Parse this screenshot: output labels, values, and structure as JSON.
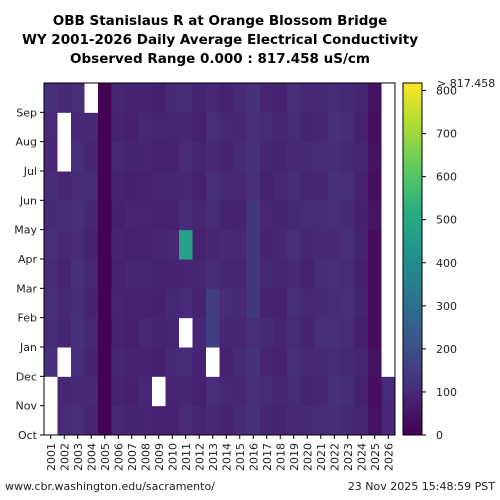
{
  "chart_data": {
    "type": "heatmap",
    "title_lines": [
      "OBB Stanislaus R at Orange Blossom Bridge",
      "WY 2001-2026 Daily Average Electrical Conductivity",
      "Observed Range 0.000 : 817.458 uS/cm"
    ],
    "x_categories": [
      "2001",
      "2002",
      "2003",
      "2004",
      "2005",
      "2006",
      "2007",
      "2008",
      "2009",
      "2010",
      "2011",
      "2012",
      "2013",
      "2014",
      "2015",
      "2016",
      "2017",
      "2018",
      "2019",
      "2020",
      "2021",
      "2022",
      "2023",
      "2024",
      "2025",
      "2026"
    ],
    "y_categories": [
      "Oct",
      "Nov",
      "Dec",
      "Jan",
      "Feb",
      "Mar",
      "Apr",
      "May",
      "Jun",
      "Jul",
      "Aug",
      "Sep"
    ],
    "colorbar": {
      "range": [
        0,
        817.458
      ],
      "ticks": [
        0,
        100,
        200,
        300,
        400,
        500,
        600,
        700,
        800
      ],
      "max_label": "> 817.458",
      "colormap": "viridis"
    },
    "year_base_values": [
      105,
      95,
      108,
      92,
      2,
      85,
      82,
      88,
      84,
      90,
      98,
      86,
      102,
      92,
      95,
      118,
      92,
      88,
      104,
      92,
      100,
      108,
      104,
      82,
      38,
      95
    ],
    "anomalies": [
      {
        "year": "2005",
        "from_month": "Oct",
        "to_month": "Sep",
        "value": 2
      },
      {
        "year": "2025",
        "from_month": "Jan",
        "to_month": "Apr",
        "value": 28
      },
      {
        "year": "2013",
        "from_month": "Dec",
        "to_month": "Feb",
        "value": 150
      },
      {
        "year": "2016",
        "from_month": "Feb",
        "to_month": "May",
        "value": 135
      },
      {
        "year": "2011",
        "from_month": "Apr",
        "to_month": "Apr",
        "value": 470
      }
    ],
    "missing": [
      {
        "year": "2001",
        "from_month": "Oct",
        "to_month": "Nov"
      },
      {
        "year": "2002",
        "from_month": "Jul",
        "to_month": "Aug"
      },
      {
        "year": "2002",
        "from_month": "Dec",
        "to_month": "Dec"
      },
      {
        "year": "2004",
        "from_month": "Sep",
        "to_month": "Sep"
      },
      {
        "year": "2009",
        "from_month": "Nov",
        "to_month": "Nov"
      },
      {
        "year": "2011",
        "from_month": "Jan",
        "to_month": "Jan"
      },
      {
        "year": "2013",
        "from_month": "Dec",
        "to_month": "Dec"
      },
      {
        "year": "2026",
        "from_month": "Dec",
        "to_month": "Sep"
      }
    ]
  },
  "footer": {
    "url": "www.cbr.washington.edu/sacramento/",
    "timestamp": "23 Nov 2025 15:48:59 PST"
  }
}
